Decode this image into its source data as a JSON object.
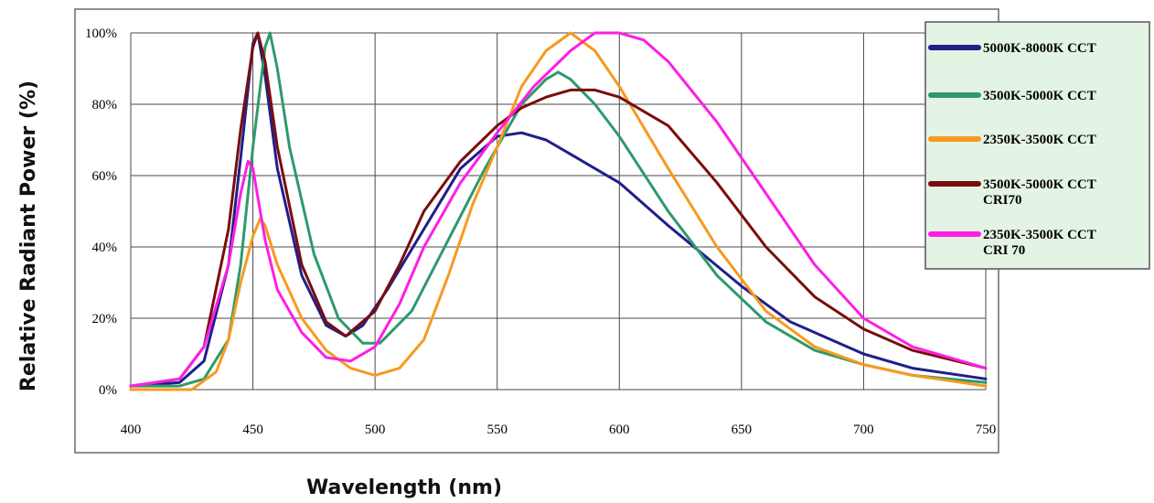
{
  "chart_data": {
    "type": "line",
    "xlabel": "Wavelength (nm)",
    "ylabel": "Relative Radiant Power (%)",
    "xlim": [
      400,
      750
    ],
    "ylim": [
      0,
      100
    ],
    "x_ticks": [
      "400",
      "450",
      "500",
      "550",
      "600",
      "650",
      "700",
      "750"
    ],
    "y_ticks": [
      "0%",
      "20%",
      "40%",
      "60%",
      "80%",
      "100%"
    ],
    "grid": true,
    "legend_position": "top-right",
    "series": [
      {
        "name": "5000K-8000K CCT",
        "color": "#1f1f8a",
        "points": [
          [
            400,
            1
          ],
          [
            420,
            2
          ],
          [
            430,
            8
          ],
          [
            440,
            35
          ],
          [
            445,
            65
          ],
          [
            450,
            97
          ],
          [
            452,
            100
          ],
          [
            455,
            88
          ],
          [
            460,
            62
          ],
          [
            470,
            32
          ],
          [
            480,
            18
          ],
          [
            488,
            15
          ],
          [
            495,
            18
          ],
          [
            505,
            28
          ],
          [
            520,
            45
          ],
          [
            535,
            62
          ],
          [
            550,
            71
          ],
          [
            560,
            72
          ],
          [
            570,
            70
          ],
          [
            580,
            66
          ],
          [
            600,
            58
          ],
          [
            620,
            46
          ],
          [
            650,
            29
          ],
          [
            670,
            19
          ],
          [
            700,
            10
          ],
          [
            720,
            6
          ],
          [
            750,
            3
          ]
        ]
      },
      {
        "name": "3500K-5000K CCT",
        "color": "#2e9a6b",
        "points": [
          [
            400,
            1
          ],
          [
            420,
            1
          ],
          [
            430,
            3
          ],
          [
            440,
            14
          ],
          [
            445,
            35
          ],
          [
            450,
            68
          ],
          [
            455,
            96
          ],
          [
            457,
            100
          ],
          [
            460,
            90
          ],
          [
            465,
            68
          ],
          [
            475,
            38
          ],
          [
            485,
            20
          ],
          [
            495,
            13
          ],
          [
            502,
            13
          ],
          [
            515,
            22
          ],
          [
            530,
            42
          ],
          [
            545,
            62
          ],
          [
            560,
            80
          ],
          [
            570,
            87
          ],
          [
            575,
            89
          ],
          [
            580,
            87
          ],
          [
            590,
            80
          ],
          [
            600,
            71
          ],
          [
            620,
            50
          ],
          [
            640,
            32
          ],
          [
            660,
            19
          ],
          [
            680,
            11
          ],
          [
            700,
            7
          ],
          [
            720,
            4
          ],
          [
            750,
            2
          ]
        ]
      },
      {
        "name": "2350K-3500K CCT",
        "color": "#f79a1e",
        "points": [
          [
            400,
            0
          ],
          [
            425,
            0
          ],
          [
            435,
            5
          ],
          [
            440,
            14
          ],
          [
            445,
            30
          ],
          [
            450,
            43
          ],
          [
            453,
            48
          ],
          [
            455,
            46
          ],
          [
            460,
            35
          ],
          [
            470,
            20
          ],
          [
            480,
            11
          ],
          [
            490,
            6
          ],
          [
            500,
            4
          ],
          [
            510,
            6
          ],
          [
            520,
            14
          ],
          [
            530,
            32
          ],
          [
            540,
            52
          ],
          [
            550,
            68
          ],
          [
            560,
            85
          ],
          [
            570,
            95
          ],
          [
            580,
            100
          ],
          [
            590,
            95
          ],
          [
            600,
            85
          ],
          [
            620,
            62
          ],
          [
            640,
            40
          ],
          [
            660,
            22
          ],
          [
            680,
            12
          ],
          [
            700,
            7
          ],
          [
            720,
            4
          ],
          [
            750,
            1
          ]
        ]
      },
      {
        "name": "3500K-5000K CCT CRI70",
        "color": "#7a0d0d",
        "points": [
          [
            400,
            1
          ],
          [
            420,
            3
          ],
          [
            430,
            12
          ],
          [
            440,
            45
          ],
          [
            445,
            73
          ],
          [
            450,
            96
          ],
          [
            452,
            100
          ],
          [
            455,
            92
          ],
          [
            460,
            68
          ],
          [
            470,
            35
          ],
          [
            480,
            19
          ],
          [
            488,
            15
          ],
          [
            500,
            22
          ],
          [
            510,
            35
          ],
          [
            520,
            50
          ],
          [
            535,
            64
          ],
          [
            550,
            74
          ],
          [
            560,
            79
          ],
          [
            570,
            82
          ],
          [
            580,
            84
          ],
          [
            590,
            84
          ],
          [
            600,
            82
          ],
          [
            620,
            74
          ],
          [
            640,
            58
          ],
          [
            660,
            40
          ],
          [
            680,
            26
          ],
          [
            700,
            17
          ],
          [
            720,
            11
          ],
          [
            750,
            6
          ]
        ]
      },
      {
        "name": "2350K-3500K CCT CRI 70",
        "color": "#ff1ee5",
        "points": [
          [
            400,
            1
          ],
          [
            420,
            3
          ],
          [
            430,
            12
          ],
          [
            440,
            35
          ],
          [
            445,
            55
          ],
          [
            448,
            64
          ],
          [
            450,
            62
          ],
          [
            455,
            42
          ],
          [
            460,
            28
          ],
          [
            470,
            16
          ],
          [
            480,
            9
          ],
          [
            490,
            8
          ],
          [
            500,
            12
          ],
          [
            510,
            24
          ],
          [
            520,
            40
          ],
          [
            535,
            58
          ],
          [
            550,
            72
          ],
          [
            565,
            85
          ],
          [
            580,
            95
          ],
          [
            590,
            100
          ],
          [
            600,
            100
          ],
          [
            610,
            98
          ],
          [
            620,
            92
          ],
          [
            640,
            75
          ],
          [
            660,
            55
          ],
          [
            680,
            35
          ],
          [
            700,
            20
          ],
          [
            720,
            12
          ],
          [
            750,
            6
          ]
        ]
      }
    ]
  }
}
